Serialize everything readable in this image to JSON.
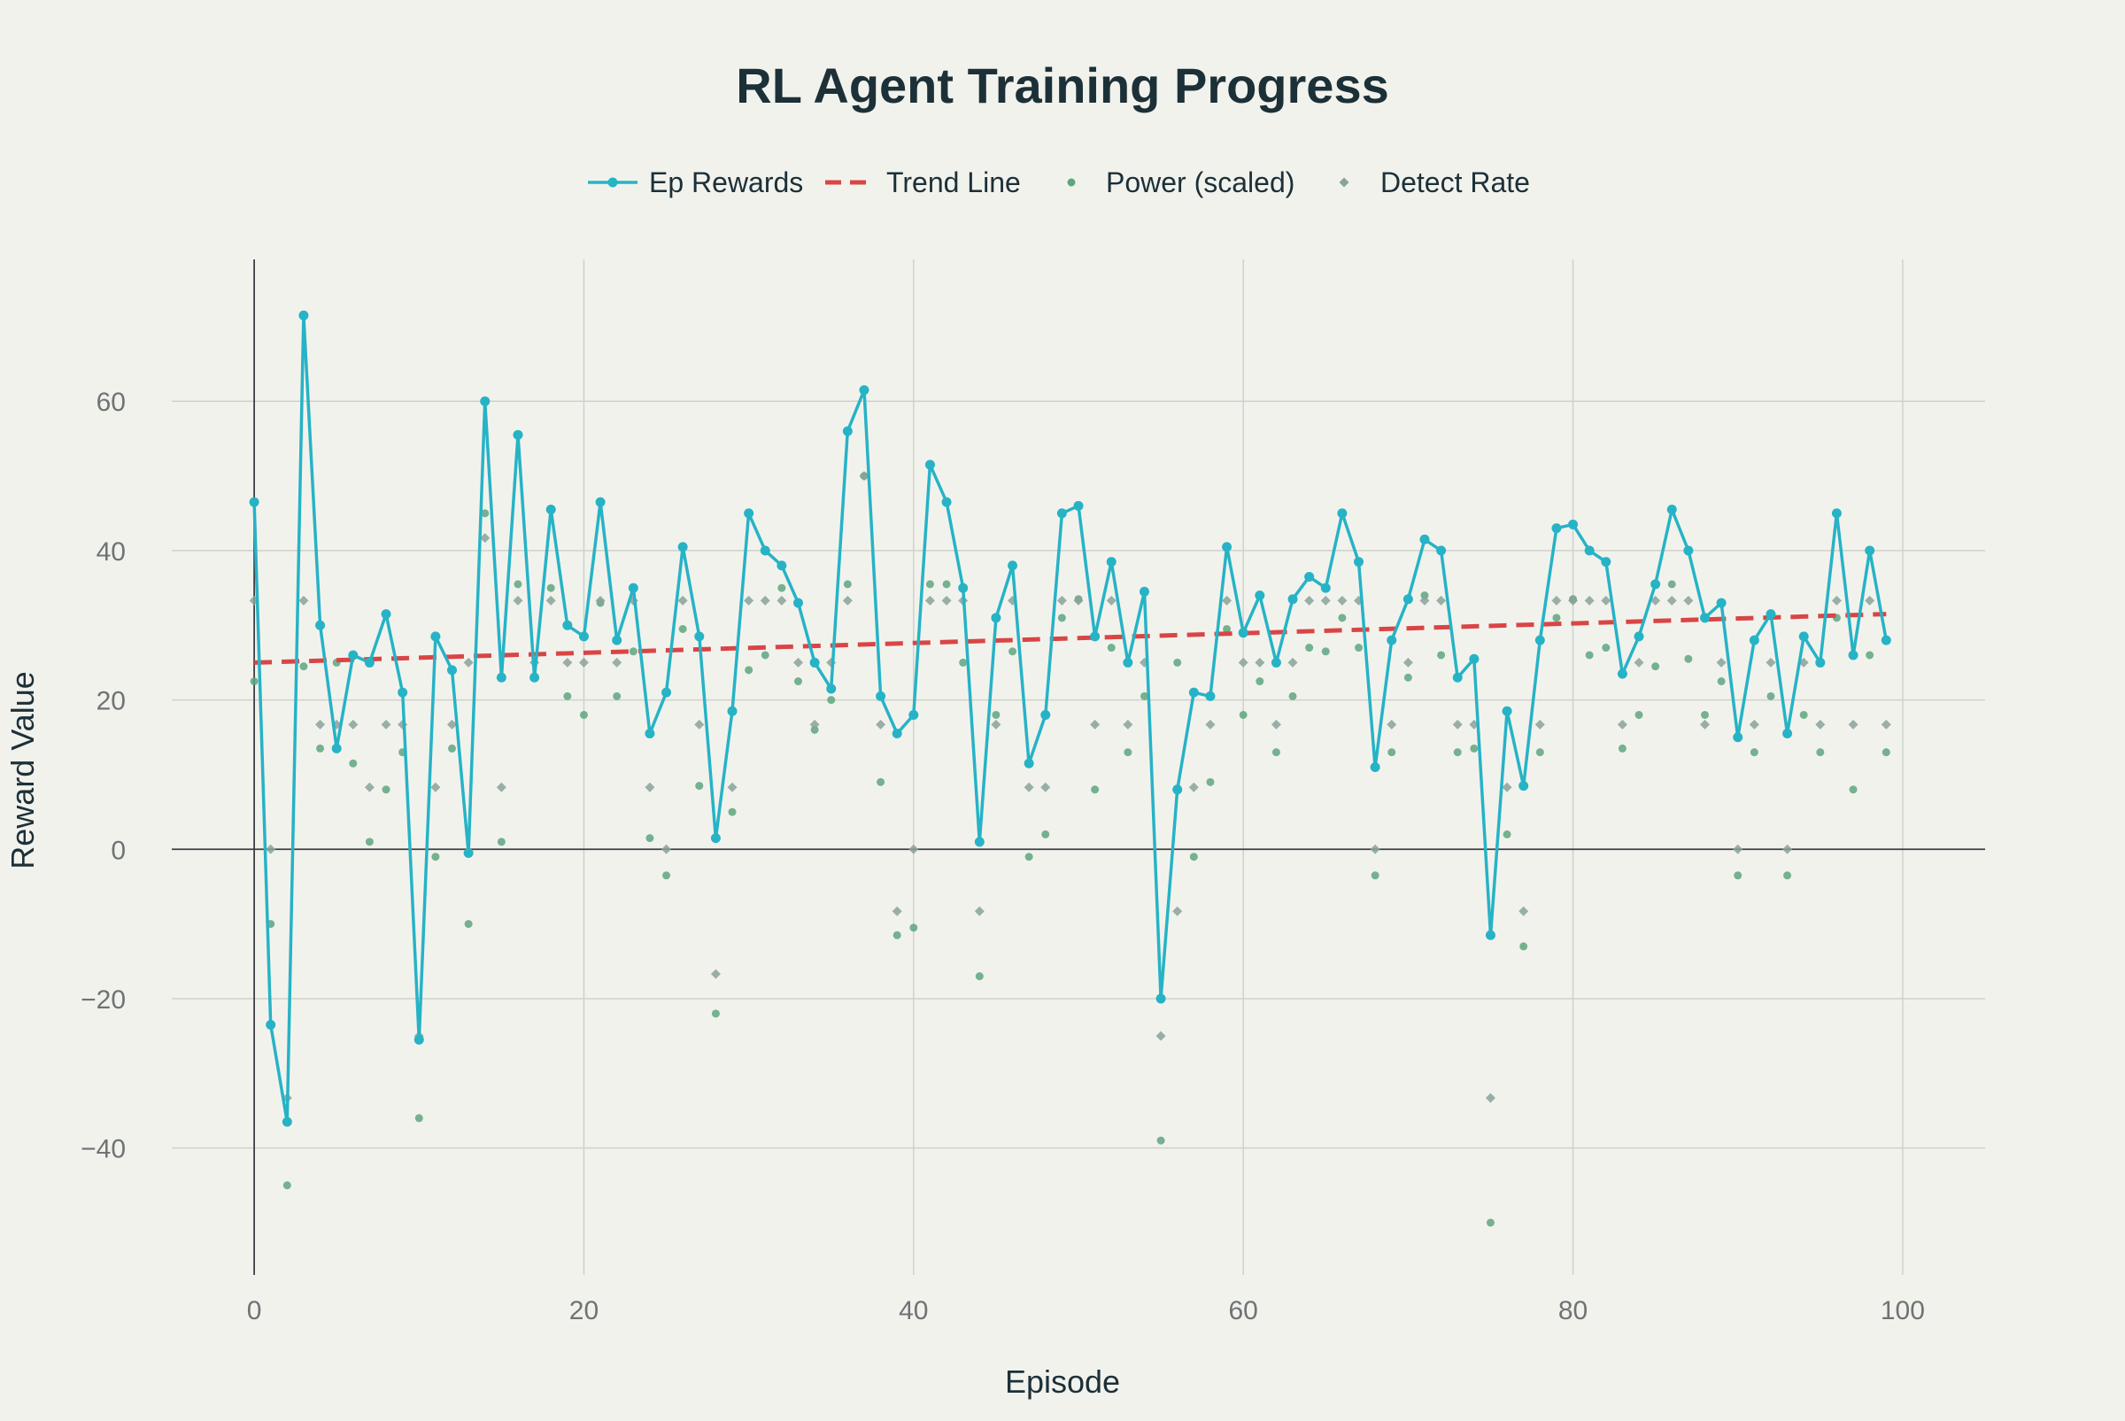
{
  "chart_data": {
    "type": "line",
    "title": "RL Agent Training Progress",
    "xlabel": "Episode",
    "ylabel": "Reward Value",
    "xlim": [
      -5,
      105
    ],
    "ylim": [
      -57,
      79
    ],
    "x_ticks": [
      0,
      20,
      40,
      60,
      80,
      100
    ],
    "y_ticks": [
      -40,
      -20,
      0,
      20,
      40,
      60
    ],
    "grid": true,
    "legend_position": "top-center, horizontal",
    "x": [
      0,
      1,
      2,
      3,
      4,
      5,
      6,
      7,
      8,
      9,
      10,
      11,
      12,
      13,
      14,
      15,
      16,
      17,
      18,
      19,
      20,
      21,
      22,
      23,
      24,
      25,
      26,
      27,
      28,
      29,
      30,
      31,
      32,
      33,
      34,
      35,
      36,
      37,
      38,
      39,
      40,
      41,
      42,
      43,
      44,
      45,
      46,
      47,
      48,
      49,
      50,
      51,
      52,
      53,
      54,
      55,
      56,
      57,
      58,
      59,
      60,
      61,
      62,
      63,
      64,
      65,
      66,
      67,
      68,
      69,
      70,
      71,
      72,
      73,
      74,
      75,
      76,
      77,
      78,
      79,
      80,
      81,
      82,
      83,
      84,
      85,
      86,
      87,
      88,
      89,
      90,
      91,
      92,
      93,
      94,
      95,
      96,
      97,
      98,
      99
    ],
    "series": [
      {
        "name": "Ep Rewards",
        "kind": "line+markers",
        "color": "#26b3c6",
        "values": [
          46.5,
          -23.5,
          -36.5,
          71.5,
          30,
          13.5,
          26,
          25,
          31.5,
          21,
          -25.5,
          28.5,
          24,
          -0.5,
          60,
          23,
          55.5,
          23,
          45.5,
          30,
          28.5,
          46.5,
          28,
          35,
          15.5,
          21,
          40.5,
          28.5,
          1.5,
          18.5,
          45,
          40,
          38,
          33,
          25,
          21.5,
          56,
          61.5,
          20.5,
          15.5,
          18,
          51.5,
          46.5,
          35,
          1,
          31,
          38,
          11.5,
          18,
          45,
          46,
          28.5,
          38.5,
          25,
          34.5,
          -20,
          8,
          21,
          20.5,
          40.5,
          29,
          34,
          25,
          33.5,
          36.5,
          35,
          45,
          38.5,
          11,
          28,
          33.5,
          41.5,
          40,
          23,
          25.5,
          -11.5,
          18.5,
          8.5,
          28,
          43,
          43.5,
          40,
          38.5,
          23.5,
          28.5,
          35.5,
          45.5,
          40,
          31,
          33,
          15,
          28,
          31.5,
          15.5,
          28.5,
          25,
          45,
          26,
          40,
          28
        ]
      },
      {
        "name": "Trend Line",
        "kind": "dashed-line",
        "color": "#d94545",
        "values_start_end": [
          25,
          31.5
        ]
      },
      {
        "name": "Power (scaled)",
        "kind": "markers",
        "color": "#5fa67e",
        "values": [
          22.5,
          -10,
          -45,
          24.5,
          13.5,
          25,
          11.5,
          1,
          8,
          13,
          -36,
          -1,
          13.5,
          -10,
          45,
          1,
          35.5,
          23,
          35,
          20.5,
          18,
          33,
          20.5,
          26.5,
          1.5,
          -3.5,
          29.5,
          8.5,
          -22,
          5,
          24,
          26,
          35,
          22.5,
          16,
          20,
          35.5,
          50,
          9,
          -11.5,
          -10.5,
          35.5,
          35.5,
          25,
          -17,
          18,
          26.5,
          -1,
          2,
          31,
          33.5,
          8,
          27,
          13,
          20.5,
          -39,
          25,
          -1,
          9,
          29.5,
          18,
          22.5,
          13,
          20.5,
          27,
          26.5,
          31,
          27,
          -3.5,
          13,
          23,
          34,
          26,
          13,
          13.5,
          -50,
          2,
          -13,
          13,
          31,
          33.5,
          26,
          27,
          13.5,
          18,
          24.5,
          35.5,
          25.5,
          18,
          22.5,
          -3.5,
          13,
          20.5,
          -3.5,
          18,
          13,
          31,
          8,
          26,
          13
        ]
      },
      {
        "name": "Detect Rate",
        "kind": "markers",
        "color": "#8aa29a",
        "values": [
          33.3,
          0,
          -33.3,
          33.3,
          16.7,
          16.7,
          16.7,
          8.3,
          16.7,
          16.7,
          -25,
          8.3,
          16.7,
          25,
          41.7,
          8.3,
          33.3,
          25,
          33.3,
          25,
          25,
          33.3,
          25,
          33.3,
          8.3,
          0,
          33.3,
          16.7,
          -16.7,
          8.3,
          33.3,
          33.3,
          33.3,
          25,
          16.7,
          25,
          33.3,
          50,
          16.7,
          -8.3,
          0,
          33.3,
          33.3,
          33.3,
          -8.3,
          16.7,
          33.3,
          8.3,
          8.3,
          33.3,
          33.3,
          16.7,
          33.3,
          16.7,
          25,
          -25,
          -8.3,
          8.3,
          16.7,
          33.3,
          25,
          25,
          16.7,
          25,
          33.3,
          33.3,
          33.3,
          33.3,
          0,
          16.7,
          25,
          33.3,
          33.3,
          16.7,
          16.7,
          -33.3,
          8.3,
          -8.3,
          16.7,
          33.3,
          33.3,
          33.3,
          33.3,
          16.7,
          25,
          33.3,
          33.3,
          33.3,
          16.7,
          25,
          0,
          16.7,
          25,
          0,
          25,
          16.7,
          33.3,
          16.7,
          33.3,
          16.7
        ]
      }
    ]
  }
}
